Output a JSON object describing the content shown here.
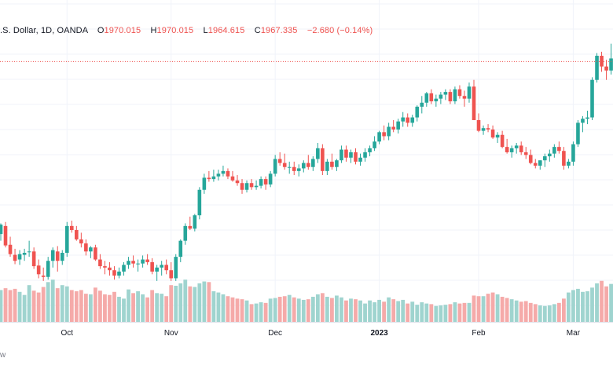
{
  "legend": {
    "symbol": ".S. Dollar, 1D, OANDA",
    "o_label": "O",
    "o_value": "1970.015",
    "h_label": "H",
    "h_value": "1970.015",
    "l_label": "L",
    "l_value": "1964.615",
    "c_label": "C",
    "c_value": "1967.335",
    "change": "−2.680 (−0.14%)"
  },
  "brand": "w",
  "colors": {
    "up": "#26a69a",
    "down": "#ef5350",
    "up_volume": "#9fd4cf",
    "down_volume": "#f5aaa9",
    "grid": "#f0f3fa",
    "price_line": "#ef5350"
  },
  "chart_data": {
    "type": "candlestick",
    "x_ticks": [
      {
        "label": "Oct",
        "bar": 14,
        "bold": false
      },
      {
        "label": "Nov",
        "bar": 36,
        "bold": false
      },
      {
        "label": "Dec",
        "bar": 58,
        "bold": false
      },
      {
        "label": "2023",
        "bar": 80,
        "bold": true
      },
      {
        "label": "Feb",
        "bar": 101,
        "bold": false
      },
      {
        "label": "Mar",
        "bar": 121,
        "bold": false
      }
    ],
    "price_range": [
      1600,
      2010
    ],
    "last_price": 1967.335,
    "grid": true,
    "volume_max": 100,
    "candles": [
      [
        1710,
        1726,
        1700,
        1724,
        52
      ],
      [
        1722,
        1728,
        1690,
        1693,
        55
      ],
      [
        1694,
        1706,
        1676,
        1680,
        52
      ],
      [
        1679,
        1688,
        1665,
        1670,
        54
      ],
      [
        1672,
        1686,
        1664,
        1680,
        49
      ],
      [
        1679,
        1688,
        1670,
        1682,
        44
      ],
      [
        1683,
        1700,
        1676,
        1684,
        60
      ],
      [
        1684,
        1690,
        1658,
        1662,
        51
      ],
      [
        1663,
        1672,
        1644,
        1650,
        48
      ],
      [
        1648,
        1660,
        1640,
        1646,
        57
      ],
      [
        1646,
        1676,
        1642,
        1670,
        65
      ],
      [
        1670,
        1690,
        1660,
        1686,
        69
      ],
      [
        1684,
        1692,
        1654,
        1670,
        55
      ],
      [
        1670,
        1686,
        1664,
        1682,
        60
      ],
      [
        1682,
        1728,
        1676,
        1722,
        58
      ],
      [
        1722,
        1730,
        1712,
        1716,
        52
      ],
      [
        1716,
        1722,
        1700,
        1702,
        50
      ],
      [
        1702,
        1712,
        1690,
        1696,
        52
      ],
      [
        1696,
        1702,
        1678,
        1684,
        46
      ],
      [
        1684,
        1692,
        1674,
        1690,
        45
      ],
      [
        1690,
        1694,
        1670,
        1672,
        56
      ],
      [
        1672,
        1680,
        1658,
        1662,
        51
      ],
      [
        1662,
        1670,
        1650,
        1660,
        45
      ],
      [
        1660,
        1668,
        1648,
        1656,
        44
      ],
      [
        1656,
        1662,
        1642,
        1648,
        49
      ],
      [
        1648,
        1660,
        1644,
        1654,
        41
      ],
      [
        1654,
        1668,
        1648,
        1664,
        38
      ],
      [
        1664,
        1676,
        1658,
        1670,
        53
      ],
      [
        1670,
        1678,
        1660,
        1666,
        47
      ],
      [
        1666,
        1672,
        1654,
        1666,
        50
      ],
      [
        1666,
        1678,
        1660,
        1672,
        45
      ],
      [
        1672,
        1680,
        1664,
        1668,
        40
      ],
      [
        1668,
        1674,
        1650,
        1654,
        52
      ],
      [
        1654,
        1664,
        1640,
        1660,
        47
      ],
      [
        1660,
        1670,
        1648,
        1664,
        46
      ],
      [
        1664,
        1672,
        1650,
        1656,
        42
      ],
      [
        1656,
        1668,
        1640,
        1644,
        60
      ],
      [
        1644,
        1680,
        1640,
        1676,
        59
      ],
      [
        1676,
        1702,
        1668,
        1700,
        63
      ],
      [
        1700,
        1726,
        1694,
        1722,
        69
      ],
      [
        1722,
        1736,
        1716,
        1718,
        58
      ],
      [
        1718,
        1740,
        1714,
        1738,
        57
      ],
      [
        1738,
        1780,
        1732,
        1776,
        63
      ],
      [
        1776,
        1800,
        1770,
        1794,
        66
      ],
      [
        1794,
        1804,
        1788,
        1792,
        65
      ],
      [
        1792,
        1806,
        1788,
        1796,
        50
      ],
      [
        1796,
        1806,
        1790,
        1800,
        48
      ],
      [
        1800,
        1812,
        1796,
        1804,
        45
      ],
      [
        1804,
        1808,
        1792,
        1796,
        42
      ],
      [
        1796,
        1804,
        1788,
        1790,
        40
      ],
      [
        1790,
        1798,
        1782,
        1786,
        38
      ],
      [
        1786,
        1792,
        1770,
        1776,
        37
      ],
      [
        1776,
        1790,
        1772,
        1786,
        35
      ],
      [
        1786,
        1792,
        1776,
        1780,
        29
      ],
      [
        1780,
        1790,
        1776,
        1782,
        30
      ],
      [
        1782,
        1796,
        1778,
        1792,
        32
      ],
      [
        1792,
        1796,
        1776,
        1784,
        31
      ],
      [
        1784,
        1804,
        1780,
        1800,
        38
      ],
      [
        1800,
        1828,
        1796,
        1822,
        39
      ],
      [
        1822,
        1832,
        1812,
        1816,
        41
      ],
      [
        1816,
        1830,
        1806,
        1810,
        42
      ],
      [
        1810,
        1818,
        1800,
        1810,
        44
      ],
      [
        1810,
        1818,
        1798,
        1804,
        40
      ],
      [
        1804,
        1814,
        1796,
        1808,
        38
      ],
      [
        1808,
        1820,
        1802,
        1816,
        36
      ],
      [
        1816,
        1828,
        1806,
        1810,
        37
      ],
      [
        1810,
        1826,
        1804,
        1822,
        41
      ],
      [
        1822,
        1846,
        1816,
        1838,
        45
      ],
      [
        1838,
        1844,
        1798,
        1804,
        47
      ],
      [
        1804,
        1822,
        1798,
        1818,
        41
      ],
      [
        1818,
        1830,
        1806,
        1810,
        39
      ],
      [
        1810,
        1822,
        1804,
        1820,
        43
      ],
      [
        1820,
        1842,
        1816,
        1836,
        40
      ],
      [
        1836,
        1842,
        1818,
        1824,
        35
      ],
      [
        1824,
        1836,
        1816,
        1832,
        38
      ],
      [
        1832,
        1838,
        1814,
        1818,
        37
      ],
      [
        1818,
        1830,
        1812,
        1824,
        35
      ],
      [
        1824,
        1838,
        1818,
        1832,
        30
      ],
      [
        1832,
        1842,
        1826,
        1838,
        35
      ],
      [
        1838,
        1856,
        1834,
        1848,
        32
      ],
      [
        1848,
        1864,
        1844,
        1862,
        36
      ],
      [
        1862,
        1872,
        1850,
        1856,
        33
      ],
      [
        1856,
        1876,
        1850,
        1870,
        40
      ],
      [
        1870,
        1880,
        1862,
        1866,
        37
      ],
      [
        1866,
        1882,
        1860,
        1878,
        34
      ],
      [
        1878,
        1892,
        1870,
        1884,
        36
      ],
      [
        1884,
        1890,
        1870,
        1876,
        30
      ],
      [
        1876,
        1888,
        1870,
        1884,
        33
      ],
      [
        1884,
        1902,
        1878,
        1900,
        28
      ],
      [
        1900,
        1916,
        1890,
        1906,
        32
      ],
      [
        1906,
        1922,
        1900,
        1920,
        30
      ],
      [
        1920,
        1926,
        1904,
        1908,
        29
      ],
      [
        1908,
        1918,
        1900,
        1912,
        26
      ],
      [
        1912,
        1922,
        1904,
        1918,
        27
      ],
      [
        1918,
        1926,
        1910,
        1922,
        28
      ],
      [
        1922,
        1926,
        1904,
        1908,
        29
      ],
      [
        1908,
        1930,
        1904,
        1926,
        32
      ],
      [
        1926,
        1932,
        1912,
        1916,
        30
      ],
      [
        1916,
        1924,
        1900,
        1912,
        31
      ],
      [
        1912,
        1936,
        1906,
        1930,
        31
      ],
      [
        1930,
        1940,
        1882,
        1880,
        43
      ],
      [
        1880,
        1890,
        1862,
        1864,
        42
      ],
      [
        1864,
        1872,
        1858,
        1868,
        42
      ],
      [
        1868,
        1874,
        1862,
        1866,
        46
      ],
      [
        1866,
        1872,
        1852,
        1854,
        48
      ],
      [
        1854,
        1862,
        1846,
        1858,
        45
      ],
      [
        1858,
        1864,
        1838,
        1840,
        41
      ],
      [
        1840,
        1852,
        1830,
        1832,
        39
      ],
      [
        1832,
        1842,
        1824,
        1838,
        37
      ],
      [
        1838,
        1846,
        1830,
        1842,
        35
      ],
      [
        1842,
        1848,
        1828,
        1832,
        33
      ],
      [
        1832,
        1840,
        1822,
        1828,
        34
      ],
      [
        1828,
        1836,
        1814,
        1816,
        31
      ],
      [
        1816,
        1822,
        1808,
        1812,
        29
      ],
      [
        1812,
        1820,
        1806,
        1820,
        27
      ],
      [
        1820,
        1830,
        1810,
        1826,
        26
      ],
      [
        1826,
        1836,
        1818,
        1830,
        27
      ],
      [
        1830,
        1844,
        1824,
        1840,
        29
      ],
      [
        1840,
        1848,
        1830,
        1834,
        31
      ],
      [
        1834,
        1840,
        1806,
        1812,
        38
      ],
      [
        1812,
        1822,
        1808,
        1818,
        48
      ],
      [
        1818,
        1848,
        1812,
        1844,
        52
      ],
      [
        1844,
        1880,
        1840,
        1876,
        54
      ],
      [
        1876,
        1886,
        1862,
        1882,
        49
      ],
      [
        1882,
        1894,
        1874,
        1884,
        50
      ],
      [
        1884,
        1944,
        1880,
        1940,
        56
      ],
      [
        1940,
        1980,
        1936,
        1976,
        63
      ],
      [
        1976,
        1982,
        1952,
        1960,
        67
      ],
      [
        1960,
        1970,
        1940,
        1954,
        58
      ],
      [
        1954,
        1994,
        1948,
        1972,
        62
      ],
      [
        1970,
        1970,
        1964,
        1967,
        60
      ]
    ]
  }
}
